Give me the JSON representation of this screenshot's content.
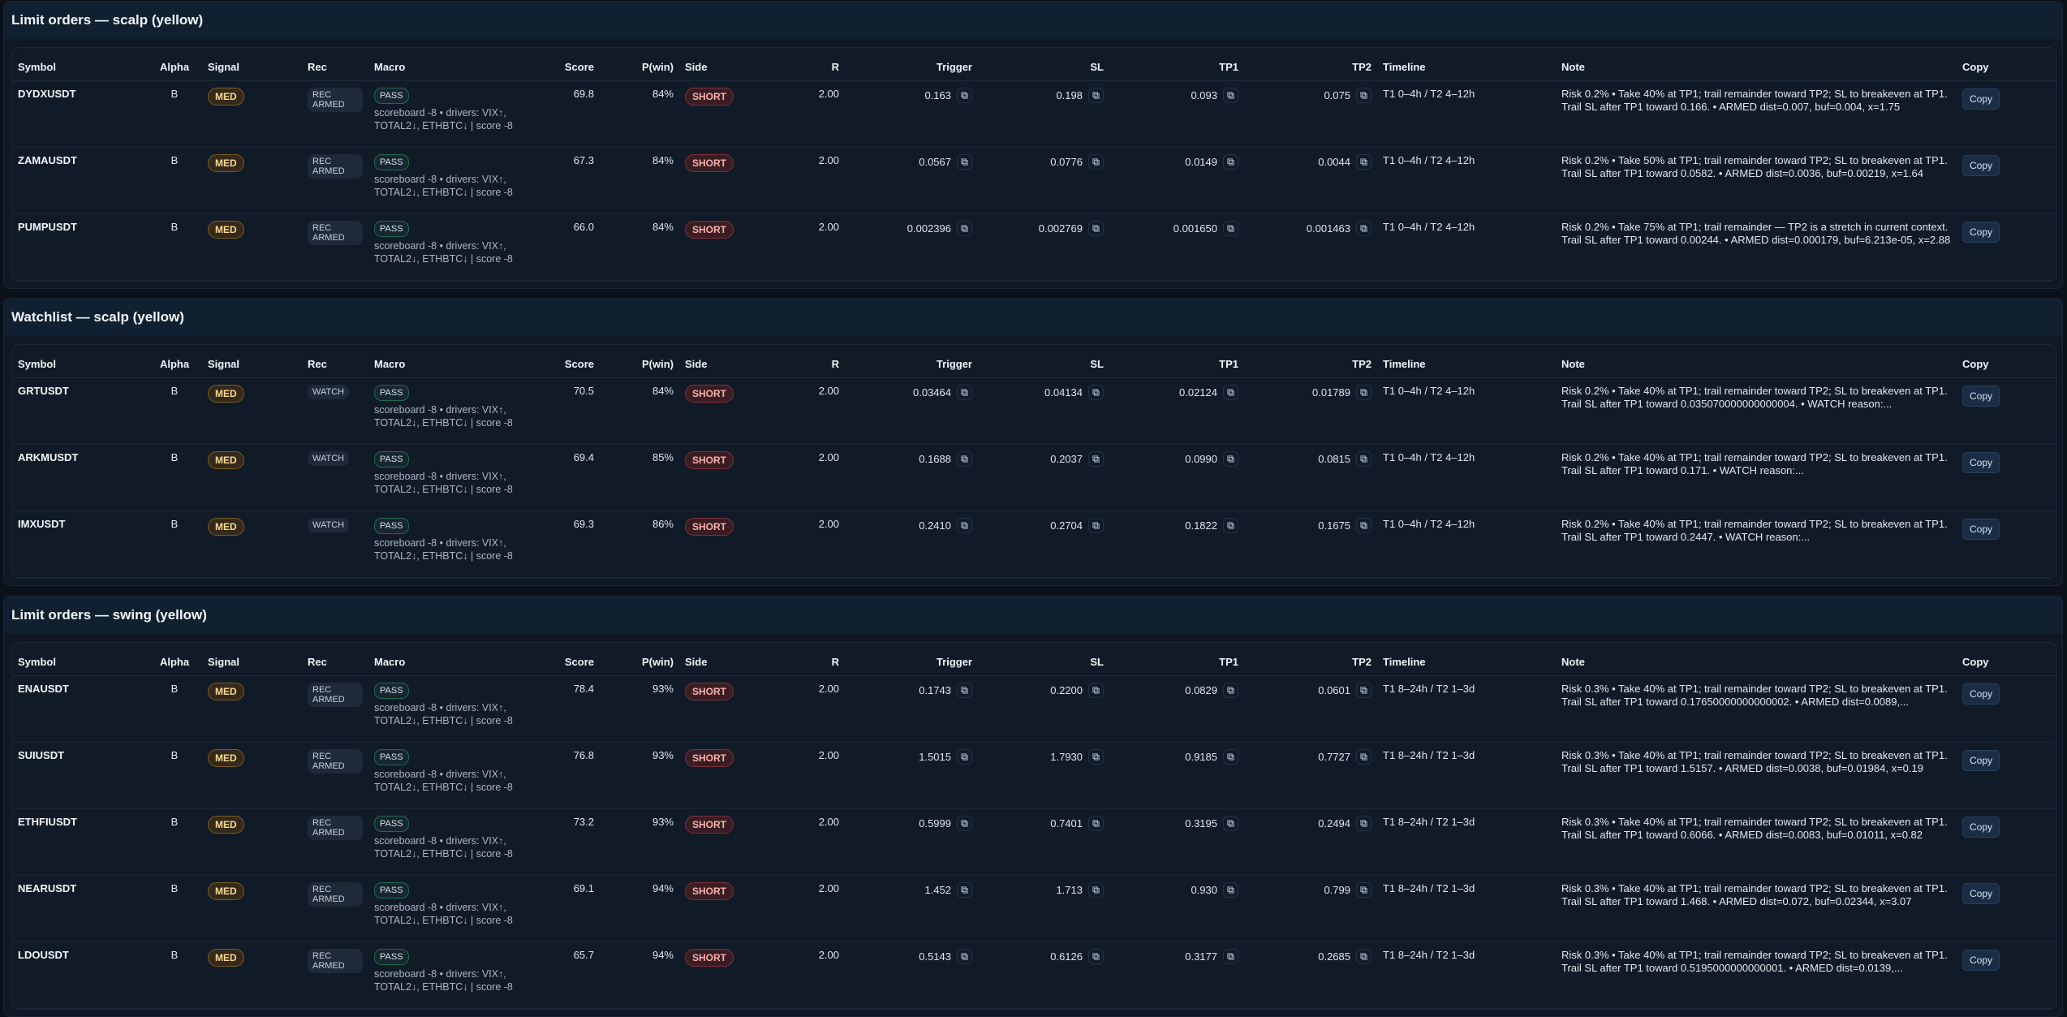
{
  "columns": [
    "Symbol",
    "Alpha",
    "Signal",
    "Rec",
    "Macro",
    "Score",
    "P(win)",
    "Side",
    "R",
    "Trigger",
    "SL",
    "TP1",
    "TP2",
    "Timeline",
    "Note",
    "Copy"
  ],
  "copy_label": "Copy",
  "icons": {
    "copy_value": "copy-icon"
  },
  "colors": {
    "med": "#f8d98e",
    "short": "#f7b0ae",
    "pass_border": "#1f6a4b",
    "copy_button": "#1b2d45",
    "background": "#0b111a"
  },
  "sections": [
    {
      "title": "Limit orders — scalp (yellow)",
      "rows": [
        {
          "symbol": "DYDXUSDT",
          "alpha": "B",
          "signal": "MED",
          "rec": "REC ARMED",
          "macro_badge": "PASS",
          "macro_text": "scoreboard -8 • drivers: VIX↑, TOTAL2↓, ETHBTC↓ | score -8",
          "score": "69.8",
          "pwin": "84%",
          "side": "SHORT",
          "r": "2.00",
          "trigger": "0.163",
          "sl": "0.198",
          "tp1": "0.093",
          "tp2": "0.075",
          "timeline": "T1 0–4h / T2 4–12h",
          "note": "Risk 0.2% • Take 40% at TP1; trail remainder toward TP2; SL to breakeven at TP1. Trail SL after TP1 toward 0.166. • ARMED dist=0.007, buf=0.004, x=1.75"
        },
        {
          "symbol": "ZAMAUSDT",
          "alpha": "B",
          "signal": "MED",
          "rec": "REC ARMED",
          "macro_badge": "PASS",
          "macro_text": "scoreboard -8 • drivers: VIX↑, TOTAL2↓, ETHBTC↓ | score -8",
          "score": "67.3",
          "pwin": "84%",
          "side": "SHORT",
          "r": "2.00",
          "trigger": "0.0567",
          "sl": "0.0776",
          "tp1": "0.0149",
          "tp2": "0.0044",
          "timeline": "T1 0–4h / T2 4–12h",
          "note": "Risk 0.2% • Take 50% at TP1; trail remainder toward TP2; SL to breakeven at TP1. Trail SL after TP1 toward 0.0582. • ARMED dist=0.0036, buf=0.00219, x=1.64"
        },
        {
          "symbol": "PUMPUSDT",
          "alpha": "B",
          "signal": "MED",
          "rec": "REC ARMED",
          "macro_badge": "PASS",
          "macro_text": "scoreboard -8 • drivers: VIX↑, TOTAL2↓, ETHBTC↓ | score -8",
          "score": "66.0",
          "pwin": "84%",
          "side": "SHORT",
          "r": "2.00",
          "trigger": "0.002396",
          "sl": "0.002769",
          "tp1": "0.001650",
          "tp2": "0.001463",
          "timeline": "T1 0–4h / T2 4–12h",
          "note": "Risk 0.2% • Take 75% at TP1; trail remainder — TP2 is a stretch in current context. Trail SL after TP1 toward 0.00244. • ARMED dist=0.000179, buf=6.213e-05, x=2.88"
        }
      ]
    },
    {
      "title": "Watchlist — scalp (yellow)",
      "rows": [
        {
          "symbol": "GRTUSDT",
          "alpha": "B",
          "signal": "MED",
          "rec": "WATCH",
          "macro_badge": "PASS",
          "macro_text": "scoreboard -8 • drivers: VIX↑, TOTAL2↓, ETHBTC↓ | score -8",
          "score": "70.5",
          "pwin": "84%",
          "side": "SHORT",
          "r": "2.00",
          "trigger": "0.03464",
          "sl": "0.04134",
          "tp1": "0.02124",
          "tp2": "0.01789",
          "timeline": "T1 0–4h / T2 4–12h",
          "note": "Risk 0.2% • Take 40% at TP1; trail remainder toward TP2; SL to breakeven at TP1. Trail SL after TP1 toward 0.035070000000000004. • WATCH reason:..."
        },
        {
          "symbol": "ARKMUSDT",
          "alpha": "B",
          "signal": "MED",
          "rec": "WATCH",
          "macro_badge": "PASS",
          "macro_text": "scoreboard -8 • drivers: VIX↑, TOTAL2↓, ETHBTC↓ | score -8",
          "score": "69.4",
          "pwin": "85%",
          "side": "SHORT",
          "r": "2.00",
          "trigger": "0.1688",
          "sl": "0.2037",
          "tp1": "0.0990",
          "tp2": "0.0815",
          "timeline": "T1 0–4h / T2 4–12h",
          "note": "Risk 0.2% • Take 40% at TP1; trail remainder toward TP2; SL to breakeven at TP1. Trail SL after TP1 toward 0.171. • WATCH reason:..."
        },
        {
          "symbol": "IMXUSDT",
          "alpha": "B",
          "signal": "MED",
          "rec": "WATCH",
          "macro_badge": "PASS",
          "macro_text": "scoreboard -8 • drivers: VIX↑, TOTAL2↓, ETHBTC↓ | score -8",
          "score": "69.3",
          "pwin": "86%",
          "side": "SHORT",
          "r": "2.00",
          "trigger": "0.2410",
          "sl": "0.2704",
          "tp1": "0.1822",
          "tp2": "0.1675",
          "timeline": "T1 0–4h / T2 4–12h",
          "note": "Risk 0.2% • Take 40% at TP1; trail remainder toward TP2; SL to breakeven at TP1. Trail SL after TP1 toward 0.2447. • WATCH reason:..."
        }
      ]
    },
    {
      "title": "Limit orders — swing (yellow)",
      "rows": [
        {
          "symbol": "ENAUSDT",
          "alpha": "B",
          "signal": "MED",
          "rec": "REC ARMED",
          "macro_badge": "PASS",
          "macro_text": "scoreboard -8 • drivers: VIX↑, TOTAL2↓, ETHBTC↓ | score -8",
          "score": "78.4",
          "pwin": "93%",
          "side": "SHORT",
          "r": "2.00",
          "trigger": "0.1743",
          "sl": "0.2200",
          "tp1": "0.0829",
          "tp2": "0.0601",
          "timeline": "T1 8–24h / T2 1–3d",
          "note": "Risk 0.3% • Take 40% at TP1; trail remainder toward TP2; SL to breakeven at TP1. Trail SL after TP1 toward 0.17650000000000002. • ARMED dist=0.0089,..."
        },
        {
          "symbol": "SUIUSDT",
          "alpha": "B",
          "signal": "MED",
          "rec": "REC ARMED",
          "macro_badge": "PASS",
          "macro_text": "scoreboard -8 • drivers: VIX↑, TOTAL2↓, ETHBTC↓ | score -8",
          "score": "76.8",
          "pwin": "93%",
          "side": "SHORT",
          "r": "2.00",
          "trigger": "1.5015",
          "sl": "1.7930",
          "tp1": "0.9185",
          "tp2": "0.7727",
          "timeline": "T1 8–24h / T2 1–3d",
          "note": "Risk 0.3% • Take 40% at TP1; trail remainder toward TP2; SL to breakeven at TP1. Trail SL after TP1 toward 1.5157. • ARMED dist=0.0038, buf=0.01984, x=0.19"
        },
        {
          "symbol": "ETHFIUSDT",
          "alpha": "B",
          "signal": "MED",
          "rec": "REC ARMED",
          "macro_badge": "PASS",
          "macro_text": "scoreboard -8 • drivers: VIX↑, TOTAL2↓, ETHBTC↓ | score -8",
          "score": "73.2",
          "pwin": "93%",
          "side": "SHORT",
          "r": "2.00",
          "trigger": "0.5999",
          "sl": "0.7401",
          "tp1": "0.3195",
          "tp2": "0.2494",
          "timeline": "T1 8–24h / T2 1–3d",
          "note": "Risk 0.3% • Take 40% at TP1; trail remainder toward TP2; SL to breakeven at TP1. Trail SL after TP1 toward 0.6066. • ARMED dist=0.0083, buf=0.01011, x=0.82"
        },
        {
          "symbol": "NEARUSDT",
          "alpha": "B",
          "signal": "MED",
          "rec": "REC ARMED",
          "macro_badge": "PASS",
          "macro_text": "scoreboard -8 • drivers: VIX↑, TOTAL2↓, ETHBTC↓ | score -8",
          "score": "69.1",
          "pwin": "94%",
          "side": "SHORT",
          "r": "2.00",
          "trigger": "1.452",
          "sl": "1.713",
          "tp1": "0.930",
          "tp2": "0.799",
          "timeline": "T1 8–24h / T2 1–3d",
          "note": "Risk 0.3% • Take 40% at TP1; trail remainder toward TP2; SL to breakeven at TP1. Trail SL after TP1 toward 1.468. • ARMED dist=0.072, buf=0.02344, x=3.07"
        },
        {
          "symbol": "LDOUSDT",
          "alpha": "B",
          "signal": "MED",
          "rec": "REC ARMED",
          "macro_badge": "PASS",
          "macro_text": "scoreboard -8 • drivers: VIX↑, TOTAL2↓, ETHBTC↓ | score -8",
          "score": "65.7",
          "pwin": "94%",
          "side": "SHORT",
          "r": "2.00",
          "trigger": "0.5143",
          "sl": "0.6126",
          "tp1": "0.3177",
          "tp2": "0.2685",
          "timeline": "T1 8–24h / T2 1–3d",
          "note": "Risk 0.3% • Take 40% at TP1; trail remainder toward TP2; SL to breakeven at TP1. Trail SL after TP1 toward 0.5195000000000001. • ARMED dist=0.0139,..."
        }
      ]
    }
  ]
}
